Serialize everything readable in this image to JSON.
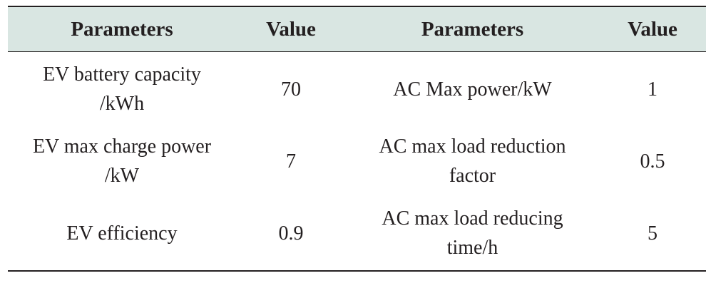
{
  "table": {
    "headers": [
      "Parameters",
      "Value",
      "Parameters",
      "Value"
    ],
    "rows": [
      {
        "param1_lines": [
          "EV battery capacity",
          "/kWh"
        ],
        "value1": "70",
        "param2_lines": [
          "AC Max power/kW"
        ],
        "value2": "1"
      },
      {
        "param1_lines": [
          "EV max charge power",
          "/kW"
        ],
        "value1": "7",
        "param2_lines": [
          "AC max load reduction",
          "factor"
        ],
        "value2": "0.5"
      },
      {
        "param1_lines": [
          "EV efficiency"
        ],
        "value1": "0.9",
        "param2_lines": [
          "AC max load reducing",
          "time/h"
        ],
        "value2": "5"
      }
    ],
    "colors": {
      "header_background": "#d9e6e2",
      "text": "#231f20",
      "rule": "#231f20"
    }
  }
}
